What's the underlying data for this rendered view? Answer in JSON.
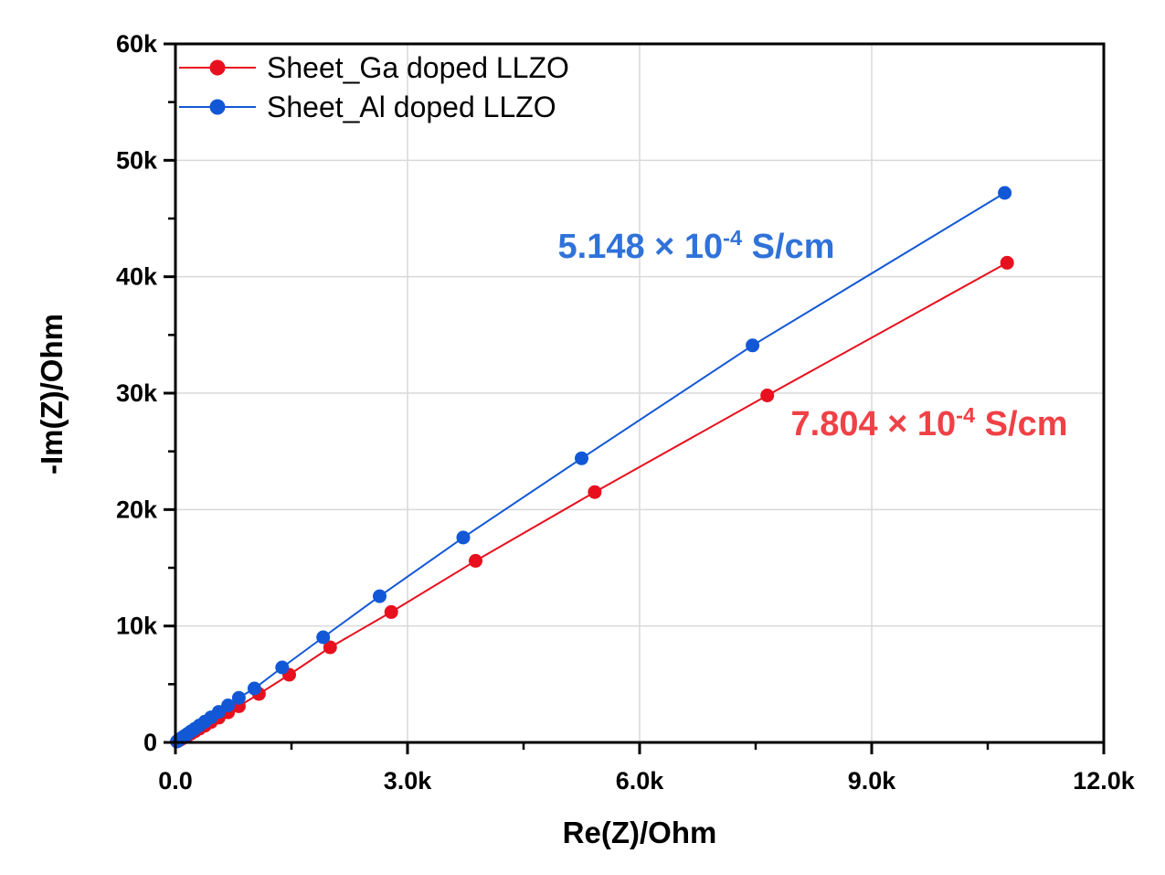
{
  "chart_data": {
    "type": "line-scatter",
    "title": "",
    "xlabel": "Re(Z)/Ohm",
    "ylabel": "-Im(Z)/Ohm",
    "xlim": [
      0,
      12000
    ],
    "ylim": [
      0,
      60000
    ],
    "grid": "major",
    "grid_color": "#d9d9d9",
    "axis_color": "#000000",
    "tick_label_color": "#000000",
    "legend_position": "top-left-inside",
    "x_major_ticks": [
      {
        "value": 0,
        "label": "0.0"
      },
      {
        "value": 3000,
        "label": "3.0k"
      },
      {
        "value": 6000,
        "label": "6.0k"
      },
      {
        "value": 9000,
        "label": "9.0k"
      },
      {
        "value": 12000,
        "label": "12.0k"
      }
    ],
    "x_minor_ticks": [
      1500,
      4500,
      7500,
      10500
    ],
    "y_major_ticks": [
      {
        "value": 0,
        "label": "0"
      },
      {
        "value": 10000,
        "label": "10k"
      },
      {
        "value": 20000,
        "label": "20k"
      },
      {
        "value": 30000,
        "label": "30k"
      },
      {
        "value": 40000,
        "label": "40k"
      },
      {
        "value": 50000,
        "label": "50k"
      },
      {
        "value": 60000,
        "label": "60k"
      }
    ],
    "y_minor_ticks": [
      5000,
      15000,
      25000,
      35000,
      45000,
      55000
    ],
    "series": [
      {
        "name": "Sheet_Ga doped LLZO",
        "color": "#e8101e",
        "marker": "circle",
        "points": [
          [
            20,
            75
          ],
          [
            45,
            170
          ],
          [
            70,
            265
          ],
          [
            95,
            360
          ],
          [
            125,
            475
          ],
          [
            160,
            610
          ],
          [
            200,
            760
          ],
          [
            250,
            950
          ],
          [
            310,
            1180
          ],
          [
            380,
            1440
          ],
          [
            460,
            1750
          ],
          [
            560,
            2130
          ],
          [
            680,
            2580
          ],
          [
            820,
            3110
          ],
          [
            1080,
            4160
          ],
          [
            1470,
            5810
          ],
          [
            2000,
            8170
          ],
          [
            2790,
            11200
          ],
          [
            3880,
            15600
          ],
          [
            5420,
            21500
          ],
          [
            7650,
            29800
          ],
          [
            10750,
            41200
          ]
        ]
      },
      {
        "name": "Sheet_Al doped LLZO",
        "color": "#1258d6",
        "marker": "circle",
        "points": [
          [
            20,
            90
          ],
          [
            45,
            210
          ],
          [
            70,
            330
          ],
          [
            95,
            450
          ],
          [
            125,
            590
          ],
          [
            160,
            750
          ],
          [
            200,
            940
          ],
          [
            250,
            1170
          ],
          [
            310,
            1450
          ],
          [
            380,
            1780
          ],
          [
            460,
            2150
          ],
          [
            560,
            2620
          ],
          [
            680,
            3180
          ],
          [
            820,
            3830
          ],
          [
            1020,
            4630
          ],
          [
            1380,
            6440
          ],
          [
            1910,
            9030
          ],
          [
            2640,
            12560
          ],
          [
            3720,
            17600
          ],
          [
            5250,
            24400
          ],
          [
            7460,
            34100
          ],
          [
            10720,
            47200
          ]
        ]
      }
    ],
    "annotations": [
      {
        "prefix": "5.148 × 10",
        "exponent": "-4",
        "suffix": " S/cm",
        "color": "#2f72d9",
        "series": "Sheet_Al doped LLZO"
      },
      {
        "prefix": "7.804 × 10",
        "exponent": "-4",
        "suffix": " S/cm",
        "color": "#ef4146",
        "series": "Sheet_Ga doped LLZO"
      }
    ]
  }
}
